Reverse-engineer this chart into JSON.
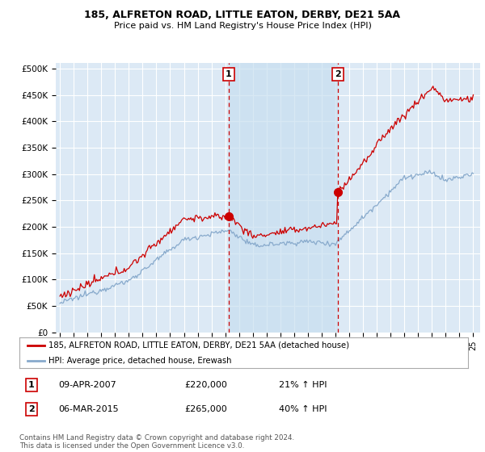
{
  "title": "185, ALFRETON ROAD, LITTLE EATON, DERBY, DE21 5AA",
  "subtitle": "Price paid vs. HM Land Registry's House Price Index (HPI)",
  "yticks": [
    0,
    50000,
    100000,
    150000,
    200000,
    250000,
    300000,
    350000,
    400000,
    450000,
    500000
  ],
  "ytick_labels": [
    "£0",
    "£50K",
    "£100K",
    "£150K",
    "£200K",
    "£250K",
    "£300K",
    "£350K",
    "£400K",
    "£450K",
    "£500K"
  ],
  "background_color": "#ffffff",
  "plot_bg_color": "#dce9f5",
  "shade_color": "#c8dff0",
  "grid_color": "#ffffff",
  "red_line_color": "#cc0000",
  "blue_line_color": "#88aacc",
  "ann1_x": 2007.25,
  "ann2_x": 2015.17,
  "ann1_price": 220000,
  "ann2_price": 265000,
  "legend_line1": "185, ALFRETON ROAD, LITTLE EATON, DERBY, DE21 5AA (detached house)",
  "legend_line2": "HPI: Average price, detached house, Erewash",
  "table_row1": [
    "1",
    "09-APR-2007",
    "£220,000",
    "21% ↑ HPI"
  ],
  "table_row2": [
    "2",
    "06-MAR-2015",
    "£265,000",
    "40% ↑ HPI"
  ],
  "footnote": "Contains HM Land Registry data © Crown copyright and database right 2024.\nThis data is licensed under the Open Government Licence v3.0.",
  "xmin": 1994.7,
  "xmax": 2025.5,
  "ymin": 0,
  "ymax": 510000
}
